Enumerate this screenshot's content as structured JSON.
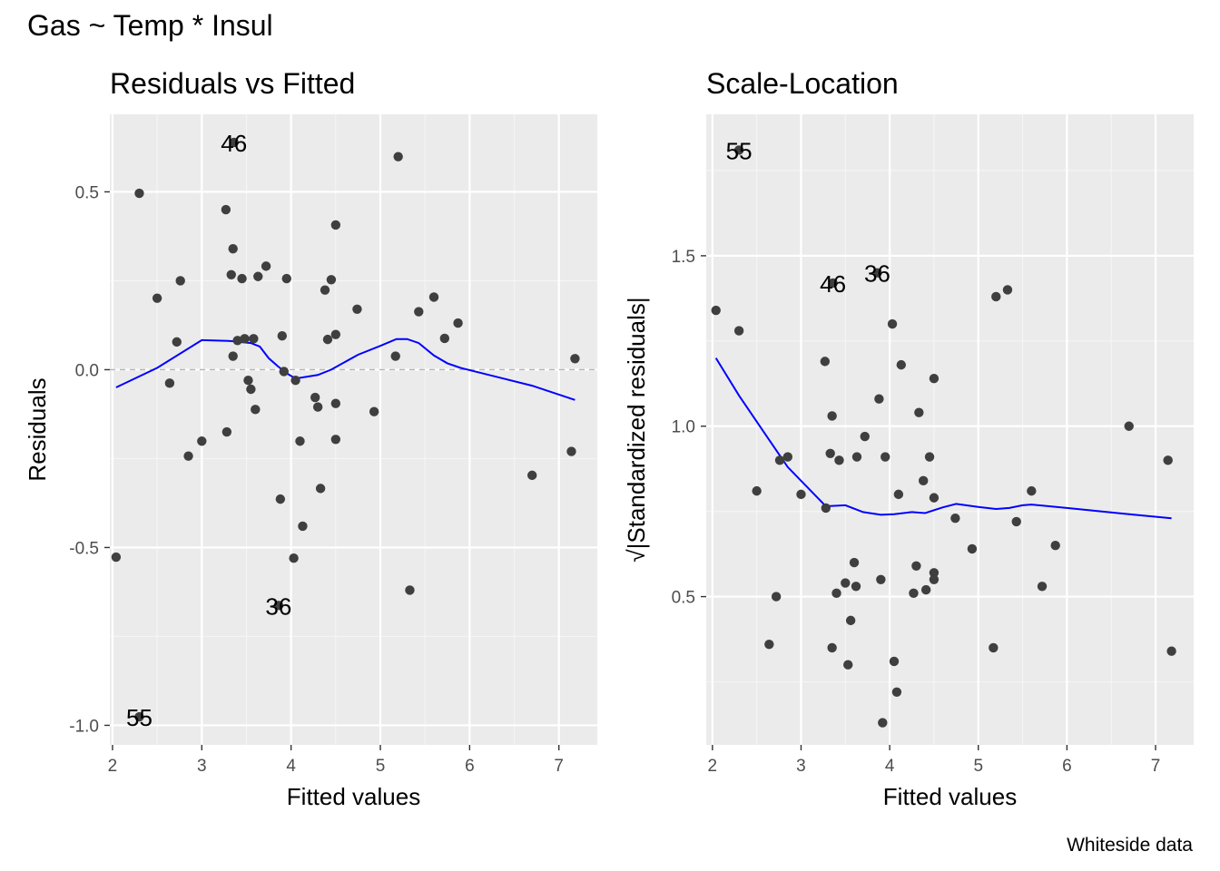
{
  "page": {
    "title": "Gas ~ Temp * Insul",
    "caption": "Whiteside data"
  },
  "colors": {
    "panel_bg": "#ebebeb",
    "grid_major": "#ffffff",
    "grid_minor": "#f5f5f5",
    "points": "#3f3f3f",
    "smooth_line": "#0000ff",
    "zero_line": "#b3b3b3",
    "tick_text": "#4d4d4d"
  },
  "chart_data": [
    {
      "type": "scatter",
      "title": "Residuals vs Fitted",
      "xlabel": "Fitted values",
      "ylabel": "Residuals",
      "xlim": [
        1.97,
        7.43
      ],
      "ylim": [
        -1.055,
        0.718
      ],
      "xticks": [
        2,
        3,
        4,
        5,
        6,
        7
      ],
      "yticks": [
        -1.0,
        -0.5,
        0.0,
        0.5
      ],
      "ytick_labels": [
        "-1.0",
        "-0.5",
        "0.0",
        "0.5"
      ],
      "grid": true,
      "reference_line_y": 0,
      "points": [
        [
          2.04,
          -0.527
        ],
        [
          2.3,
          0.496
        ],
        [
          2.5,
          0.201
        ],
        [
          2.64,
          -0.038
        ],
        [
          2.72,
          0.078
        ],
        [
          2.76,
          0.25
        ],
        [
          2.85,
          -0.243
        ],
        [
          3.0,
          -0.201
        ],
        [
          3.27,
          0.45
        ],
        [
          3.28,
          -0.175
        ],
        [
          3.33,
          0.267
        ],
        [
          3.35,
          0.34
        ],
        [
          3.35,
          0.038
        ],
        [
          3.4,
          0.082
        ],
        [
          3.45,
          0.256
        ],
        [
          3.48,
          0.087
        ],
        [
          3.52,
          -0.03
        ],
        [
          3.55,
          -0.055
        ],
        [
          3.58,
          0.087
        ],
        [
          3.6,
          -0.112
        ],
        [
          3.63,
          0.262
        ],
        [
          3.72,
          0.291
        ],
        [
          3.88,
          -0.364
        ],
        [
          3.9,
          0.095
        ],
        [
          3.92,
          -0.005
        ],
        [
          3.95,
          0.256
        ],
        [
          4.03,
          -0.53
        ],
        [
          4.05,
          -0.03
        ],
        [
          4.1,
          -0.201
        ],
        [
          4.13,
          -0.44
        ],
        [
          4.27,
          -0.078
        ],
        [
          4.3,
          -0.105
        ],
        [
          4.33,
          -0.334
        ],
        [
          4.38,
          0.224
        ],
        [
          4.41,
          0.085
        ],
        [
          4.45,
          0.253
        ],
        [
          4.5,
          0.407
        ],
        [
          4.5,
          0.099
        ],
        [
          4.5,
          -0.095
        ],
        [
          4.5,
          -0.196
        ],
        [
          4.74,
          0.17
        ],
        [
          4.93,
          -0.118
        ],
        [
          5.17,
          0.038
        ],
        [
          5.2,
          0.599
        ],
        [
          5.33,
          -0.62
        ],
        [
          5.43,
          0.163
        ],
        [
          5.6,
          0.204
        ],
        [
          5.72,
          0.088
        ],
        [
          5.87,
          0.131
        ],
        [
          6.7,
          -0.297
        ],
        [
          7.14,
          -0.23
        ],
        [
          7.18,
          0.031
        ],
        [
          3.36,
          0.639
        ],
        [
          3.86,
          -0.663
        ],
        [
          2.3,
          -0.976
        ]
      ],
      "point_labels": [
        {
          "label": "46",
          "x": 3.36,
          "y": 0.639
        },
        {
          "label": "36",
          "x": 3.86,
          "y": -0.663
        },
        {
          "label": "55",
          "x": 2.3,
          "y": -0.976
        }
      ],
      "smooth": [
        [
          2.04,
          -0.05
        ],
        [
          2.5,
          0.005
        ],
        [
          3.0,
          0.083
        ],
        [
          3.3,
          0.081
        ],
        [
          3.55,
          0.075
        ],
        [
          3.65,
          0.065
        ],
        [
          3.75,
          0.032
        ],
        [
          3.85,
          0.01
        ],
        [
          3.95,
          -0.01
        ],
        [
          4.05,
          -0.025
        ],
        [
          4.3,
          -0.015
        ],
        [
          4.45,
          0.0
        ],
        [
          4.75,
          0.042
        ],
        [
          5.0,
          0.067
        ],
        [
          5.18,
          0.086
        ],
        [
          5.3,
          0.086
        ],
        [
          5.43,
          0.075
        ],
        [
          5.6,
          0.04
        ],
        [
          5.75,
          0.018
        ],
        [
          5.9,
          0.005
        ],
        [
          6.3,
          -0.02
        ],
        [
          6.7,
          -0.045
        ],
        [
          7.18,
          -0.085
        ]
      ]
    },
    {
      "type": "scatter",
      "title": "Scale-Location",
      "xlabel": "Fitted values",
      "ylabel": "√|Standardized residuals|",
      "xlim": [
        1.93,
        7.43
      ],
      "ylim": [
        0.065,
        1.915
      ],
      "xticks": [
        2,
        3,
        4,
        5,
        6,
        7
      ],
      "yticks": [
        0.5,
        1.0,
        1.5
      ],
      "ytick_labels": [
        "0.5",
        "1.0",
        "1.5"
      ],
      "grid": true,
      "points": [
        [
          2.04,
          1.34
        ],
        [
          2.3,
          1.28
        ],
        [
          2.5,
          0.81
        ],
        [
          2.64,
          0.36
        ],
        [
          2.72,
          0.5
        ],
        [
          2.76,
          0.9
        ],
        [
          2.85,
          0.91
        ],
        [
          3.0,
          0.8
        ],
        [
          3.27,
          1.19
        ],
        [
          3.28,
          0.76
        ],
        [
          3.33,
          0.92
        ],
        [
          3.35,
          1.03
        ],
        [
          3.35,
          0.35
        ],
        [
          3.4,
          0.51
        ],
        [
          3.43,
          0.9
        ],
        [
          3.5,
          0.54
        ],
        [
          3.53,
          0.3
        ],
        [
          3.56,
          0.43
        ],
        [
          3.6,
          0.6
        ],
        [
          3.62,
          0.53
        ],
        [
          3.63,
          0.91
        ],
        [
          3.72,
          0.97
        ],
        [
          3.88,
          1.08
        ],
        [
          3.9,
          0.55
        ],
        [
          3.92,
          0.13
        ],
        [
          3.95,
          0.91
        ],
        [
          4.03,
          1.3
        ],
        [
          4.05,
          0.31
        ],
        [
          4.08,
          0.22
        ],
        [
          4.1,
          0.8
        ],
        [
          4.13,
          1.18
        ],
        [
          4.27,
          0.51
        ],
        [
          4.3,
          0.59
        ],
        [
          4.33,
          1.04
        ],
        [
          4.38,
          0.84
        ],
        [
          4.41,
          0.52
        ],
        [
          4.45,
          0.91
        ],
        [
          4.5,
          1.14
        ],
        [
          4.5,
          0.79
        ],
        [
          4.5,
          0.57
        ],
        [
          4.5,
          0.55
        ],
        [
          4.74,
          0.73
        ],
        [
          4.93,
          0.64
        ],
        [
          5.17,
          0.35
        ],
        [
          5.2,
          1.38
        ],
        [
          5.33,
          1.4
        ],
        [
          5.43,
          0.72
        ],
        [
          5.6,
          0.81
        ],
        [
          5.72,
          0.53
        ],
        [
          5.87,
          0.65
        ],
        [
          6.7,
          1.0
        ],
        [
          7.14,
          0.9
        ],
        [
          7.18,
          0.34
        ],
        [
          2.3,
          1.81
        ],
        [
          3.36,
          1.42
        ],
        [
          3.86,
          1.45
        ]
      ],
      "point_labels": [
        {
          "label": "55",
          "x": 2.3,
          "y": 1.81
        },
        {
          "label": "46",
          "x": 3.36,
          "y": 1.42
        },
        {
          "label": "36",
          "x": 3.86,
          "y": 1.45
        }
      ],
      "smooth": [
        [
          2.04,
          1.2
        ],
        [
          2.3,
          1.09
        ],
        [
          2.6,
          0.975
        ],
        [
          2.85,
          0.88
        ],
        [
          3.0,
          0.84
        ],
        [
          3.15,
          0.8
        ],
        [
          3.28,
          0.765
        ],
        [
          3.5,
          0.768
        ],
        [
          3.7,
          0.748
        ],
        [
          3.9,
          0.74
        ],
        [
          4.05,
          0.742
        ],
        [
          4.25,
          0.748
        ],
        [
          4.4,
          0.745
        ],
        [
          4.6,
          0.762
        ],
        [
          4.75,
          0.772
        ],
        [
          5.0,
          0.763
        ],
        [
          5.2,
          0.757
        ],
        [
          5.35,
          0.76
        ],
        [
          5.5,
          0.768
        ],
        [
          5.6,
          0.77
        ],
        [
          6.0,
          0.76
        ],
        [
          6.7,
          0.742
        ],
        [
          7.18,
          0.73
        ]
      ]
    }
  ]
}
